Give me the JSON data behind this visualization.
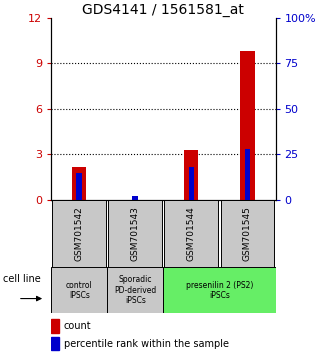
{
  "title": "GDS4141 / 1561581_at",
  "samples": [
    "GSM701542",
    "GSM701543",
    "GSM701544",
    "GSM701545"
  ],
  "count_values": [
    2.2,
    0.0,
    3.3,
    9.8
  ],
  "percentile_values": [
    15,
    2,
    18,
    28
  ],
  "count_color": "#cc0000",
  "percentile_color": "#0000cc",
  "ylim_left": [
    0,
    12
  ],
  "ylim_right": [
    0,
    100
  ],
  "yticks_left": [
    0,
    3,
    6,
    9,
    12
  ],
  "ytick_labels_right": [
    "0",
    "25",
    "50",
    "75",
    "100%"
  ],
  "yticks_right": [
    0,
    25,
    50,
    75,
    100
  ],
  "bar_width": 0.25,
  "perc_bar_width": 0.1,
  "cell_line_label": "cell line",
  "legend_count": "count",
  "legend_percentile": "percentile rank within the sample",
  "tick_label_color_left": "#cc0000",
  "tick_label_color_right": "#0000cc",
  "group_info": [
    {
      "span": [
        0,
        1
      ],
      "label": "control\nIPSCs",
      "color": "#c8c8c8"
    },
    {
      "span": [
        1,
        2
      ],
      "label": "Sporadic\nPD-derived\niPSCs",
      "color": "#c8c8c8"
    },
    {
      "span": [
        2,
        4
      ],
      "label": "presenilin 2 (PS2)\niPSCs",
      "color": "#66ee66"
    }
  ],
  "sample_box_color": "#c8c8c8"
}
